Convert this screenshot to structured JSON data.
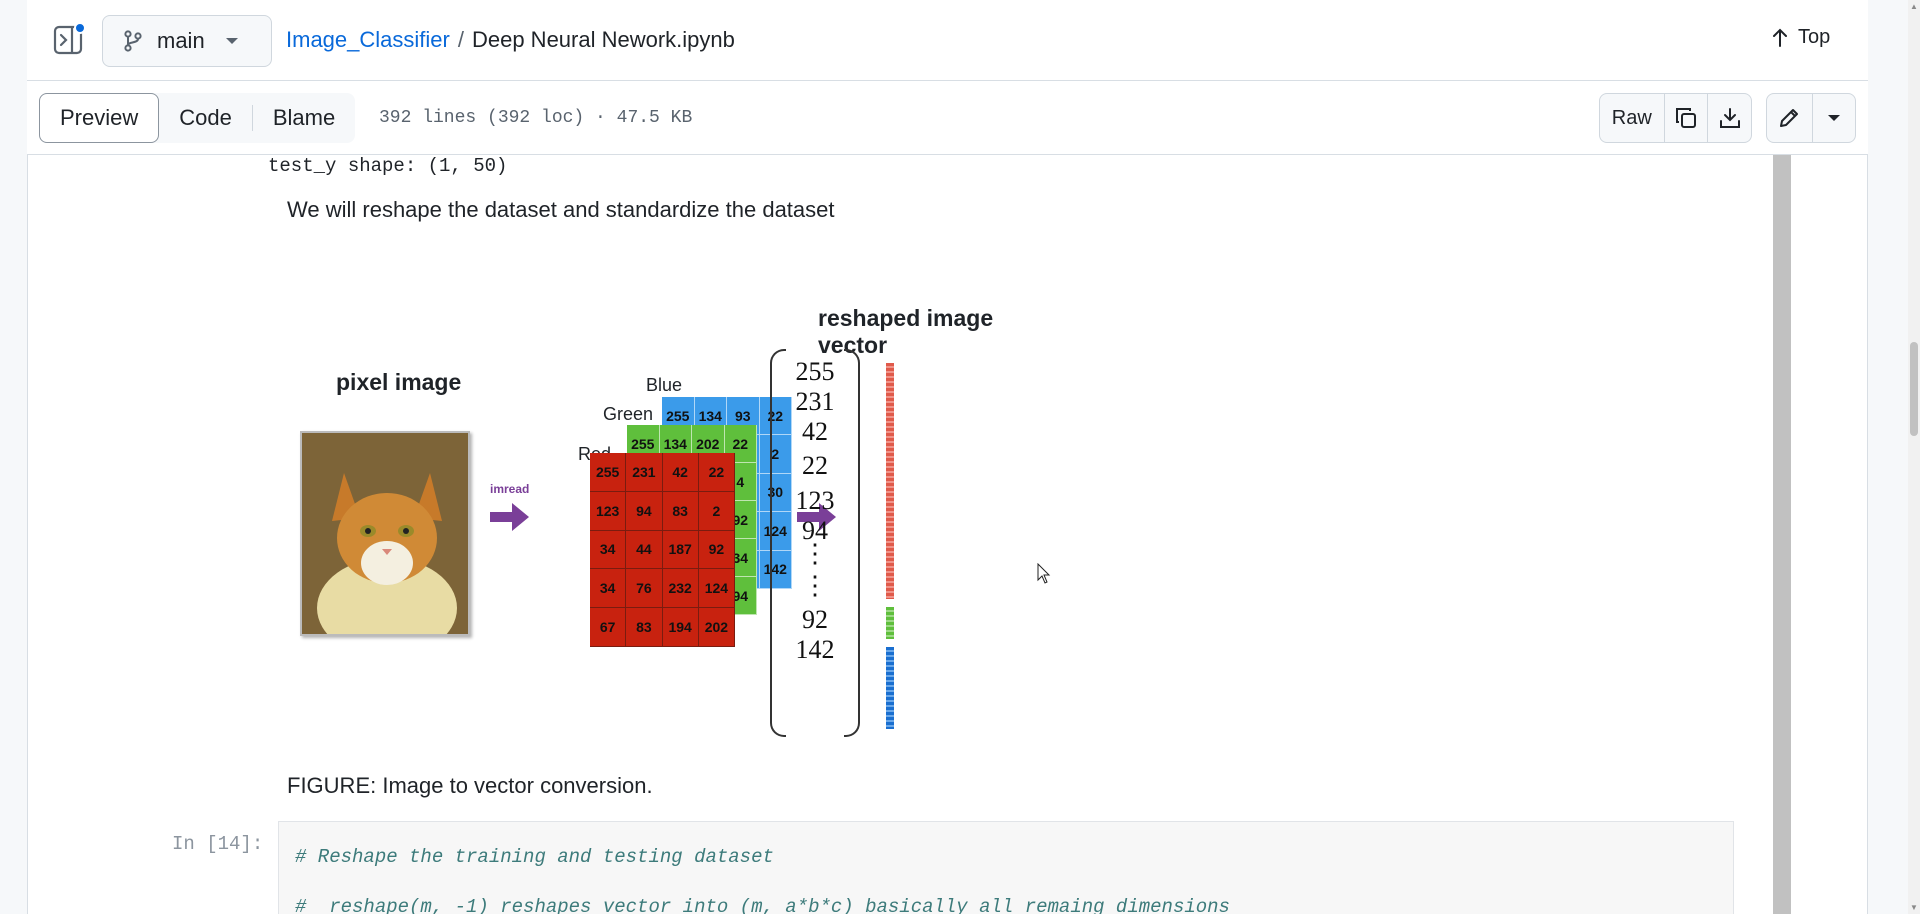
{
  "header": {
    "branch": "main",
    "repo": "Image_Classifier",
    "separator": "/",
    "file": "Deep Neural Nework.ipynb",
    "top_label": "Top"
  },
  "toolbar": {
    "tabs": [
      "Preview",
      "Code",
      "Blame"
    ],
    "active_tab": "Preview",
    "file_meta": "392 lines (392 loc) · 47.5 KB",
    "raw_label": "Raw"
  },
  "notebook": {
    "output_line": "test_y shape: (1, 50)",
    "markdown_text": "We will reshape the dataset and standardize the dataset",
    "figure": {
      "title_vector": "reshaped image vector",
      "title_pixel": "pixel image",
      "arrow_label": "imread",
      "channels": [
        "Blue",
        "Green",
        "Red"
      ],
      "red_grid": [
        [
          "255",
          "231",
          "42",
          "22"
        ],
        [
          "123",
          "94",
          "83",
          "2"
        ],
        [
          "34",
          "44",
          "187",
          "92"
        ],
        [
          "34",
          "76",
          "232",
          "124"
        ],
        [
          "67",
          "83",
          "194",
          "202"
        ]
      ],
      "green_top_row": [
        "255",
        "134",
        "202",
        "22"
      ],
      "green_right_col": [
        "4",
        "92",
        "34",
        "94"
      ],
      "blue_top_row": [
        "255",
        "134",
        "93",
        "22"
      ],
      "blue_right_col": [
        "2",
        "30",
        "124",
        "142"
      ],
      "vector": [
        "255",
        "231",
        "42",
        "22",
        "123",
        "94",
        "⋮",
        "⋮",
        "92",
        "142"
      ],
      "colors": {
        "red": "#c8220f",
        "green": "#5fbf3c",
        "blue": "#3b9bea",
        "arrow": "#7a3f98"
      }
    },
    "caption": "FIGURE: Image to vector conversion.",
    "cell_prompt": "In [14]:",
    "code_lines": [
      "# Reshape the training and testing dataset",
      "#  reshape(m, -1) reshapes vector into (m, a*b*c) basically all remaing dimensions"
    ]
  }
}
